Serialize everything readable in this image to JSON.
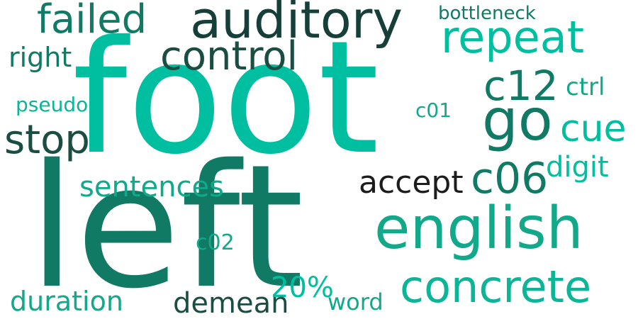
{
  "words": {
    "foot": "foot",
    "left": "left",
    "auditory": "auditory",
    "failed": "failed",
    "bottleneck": "bottleneck",
    "repeat": "repeat",
    "control": "control",
    "right": "right",
    "c12": "c12",
    "ctrl": "ctrl",
    "pseudo": "pseudo",
    "c01": "c01",
    "go": "go",
    "stop": "stop",
    "cue": "cue",
    "digit": "digit",
    "accept": "accept",
    "c06": "c06",
    "sentences": "sentences",
    "english": "english",
    "c02": "c02",
    "pct20": "20%",
    "concrete": "concrete",
    "duration": "duration",
    "demean": "demean",
    "word": "word"
  },
  "colors": {
    "teal": "#00BFA0",
    "teal_mid": "#0BB598",
    "teal_soft": "#12A88A",
    "green": "#117A65",
    "dark_green": "#1B4D43",
    "navy_green": "#153F38",
    "black": "#1C1C1C"
  }
}
